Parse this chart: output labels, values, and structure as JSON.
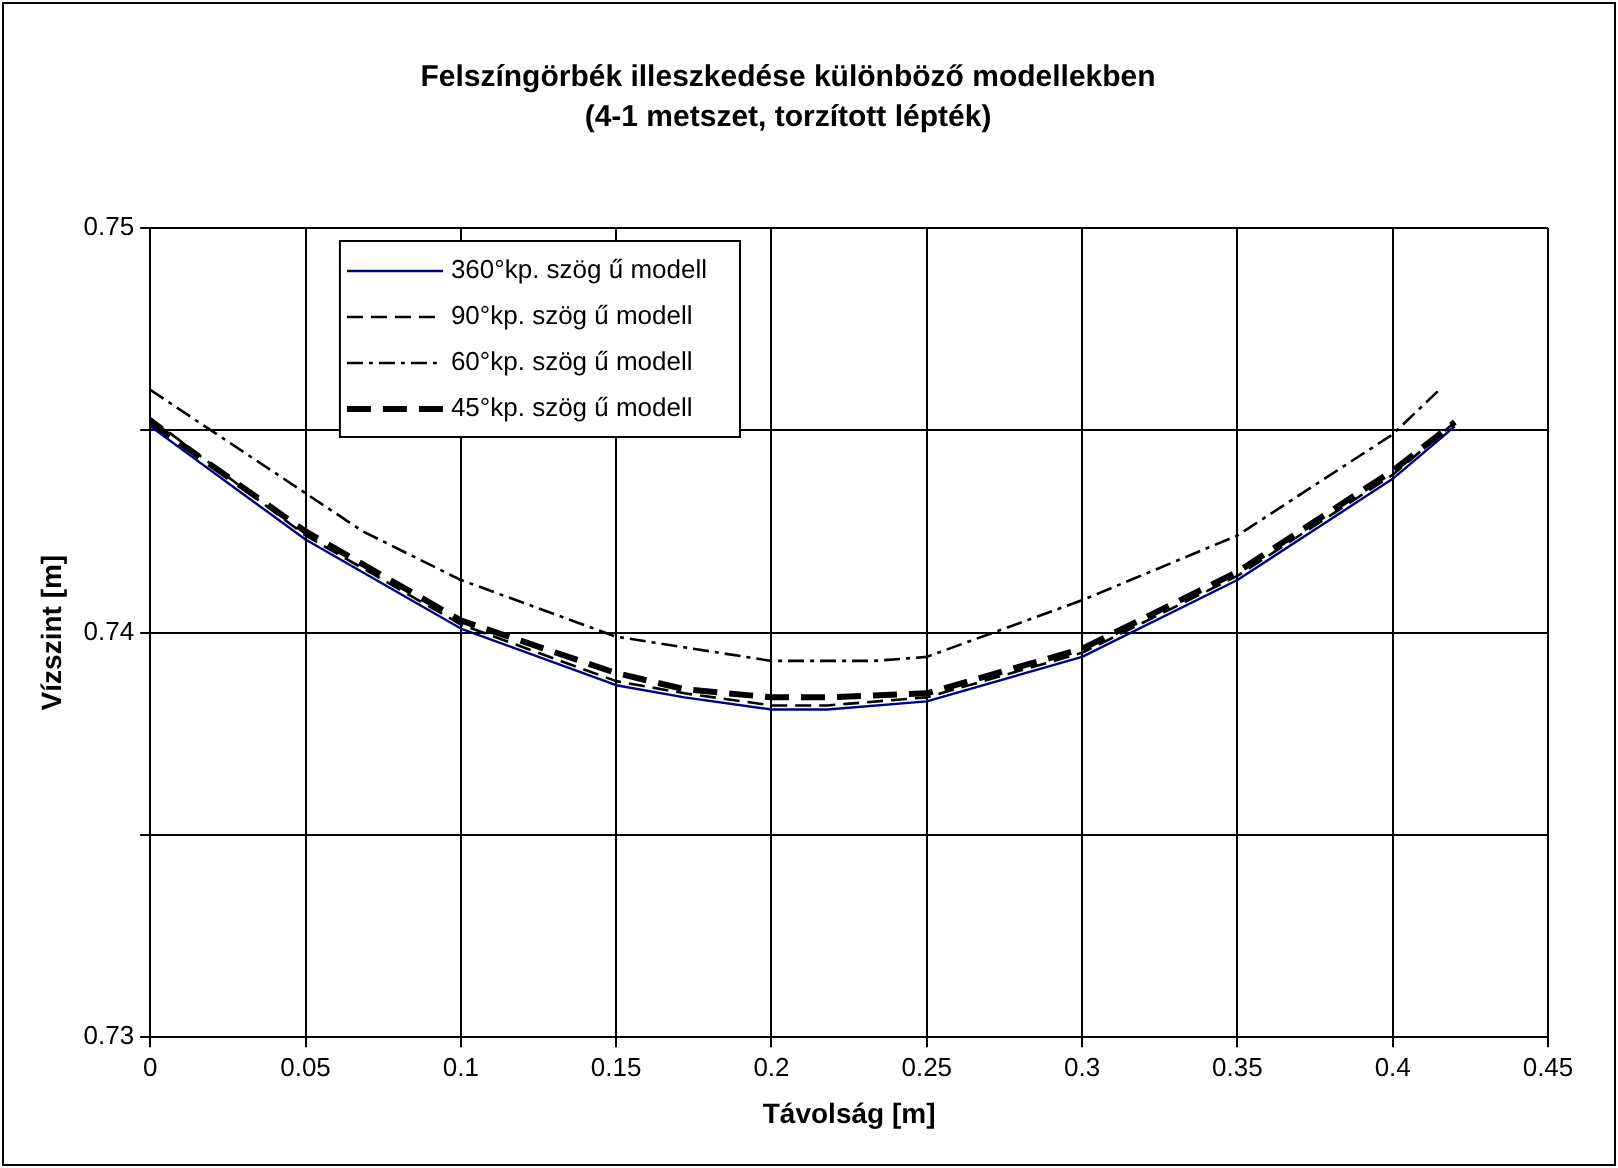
{
  "chart_data": {
    "type": "line",
    "title": "Felszíngörbék illeszkedése különböző modellekben",
    "subtitle": "(4-1 metszet, torzított lépték)",
    "xlabel": "Távolság [m]",
    "ylabel": "Vízszint [m]",
    "x": [
      0,
      0.05,
      0.1,
      0.15,
      0.172,
      0.2,
      0.218,
      0.25,
      0.3,
      0.35,
      0.4,
      0.42
    ],
    "series": [
      {
        "name": "360°kp. szög ű modell",
        "color": "#000080",
        "line_style": "solid",
        "values": [
          0.7451,
          0.7423,
          0.7401,
          0.7387,
          0.7384,
          0.7381,
          0.7381,
          0.7383,
          0.7394,
          0.7413,
          0.7438,
          0.7451
        ]
      },
      {
        "name": "90°kp. szög ű modell",
        "color": "#000000",
        "line_style": "dashed",
        "values": [
          0.7453,
          0.7424,
          0.7402,
          0.7388,
          0.7385,
          0.7382,
          0.7382,
          0.7384,
          0.7395,
          0.7414,
          0.7439,
          0.7452
        ]
      },
      {
        "name": "60°kp. szög ű modell",
        "color": "#000000",
        "line_style": "dashdot",
        "x": [
          0,
          0.0685,
          0.1,
          0.15,
          0.2,
          0.233,
          0.25,
          0.3,
          0.35,
          0.4,
          0.415
        ],
        "values": [
          0.746,
          0.7425,
          0.7413,
          0.7399,
          0.7393,
          0.7393,
          0.7394,
          0.7408,
          0.7424,
          0.7449,
          0.746
        ]
      },
      {
        "name": "45°kp. szög ű modell",
        "color": "#000000",
        "line_style": "longdash",
        "values": [
          0.7452,
          0.7425,
          0.7403,
          0.739,
          0.7386,
          0.7384,
          0.7384,
          0.7385,
          0.7396,
          0.7415,
          0.744,
          0.7452
        ]
      }
    ],
    "xlim": [
      0,
      0.45
    ],
    "xticks": [
      0,
      0.05,
      0.1,
      0.15,
      0.2,
      0.25,
      0.3,
      0.35,
      0.4,
      0.45
    ],
    "ylim": [
      0.73,
      0.75
    ],
    "yticks": [
      0.73,
      {
        "value": 0.735,
        "label": null
      },
      0.74,
      {
        "value": 0.745,
        "label": null
      },
      0.75
    ],
    "grid": true,
    "legend": "top left",
    "marker": "none"
  }
}
